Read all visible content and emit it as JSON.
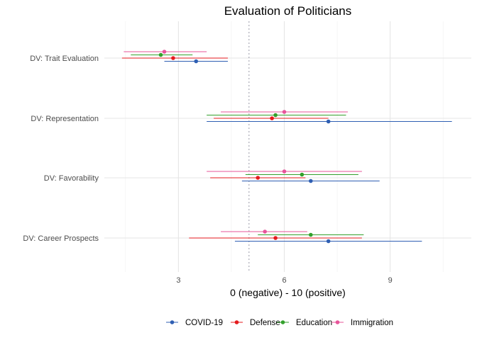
{
  "chart_data": {
    "type": "errorbar",
    "title": "Evaluation of Politicians",
    "xlabel": "0 (negative) - 10 (positive)",
    "ylabel": "",
    "xlim": [
      0.9,
      11.3
    ],
    "x_ticks": [
      3,
      6,
      9
    ],
    "reference_line": 5,
    "grid": true,
    "legend_position": "bottom",
    "categories": [
      "DV: Trait Evaluation",
      "DV: Representation",
      "DV: Favorability",
      "DV: Career Prospects"
    ],
    "series": [
      {
        "name": "COVID-19",
        "color": "#2f5fb3",
        "points": [
          {
            "category": "DV: Trait Evaluation",
            "estimate": 3.5,
            "low": 2.6,
            "high": 4.4
          },
          {
            "category": "DV: Representation",
            "estimate": 7.25,
            "low": 3.8,
            "high": 10.75
          },
          {
            "category": "DV: Favorability",
            "estimate": 6.75,
            "low": 4.8,
            "high": 8.7
          },
          {
            "category": "DV: Career Prospects",
            "estimate": 7.25,
            "low": 4.6,
            "high": 9.9
          }
        ]
      },
      {
        "name": "Defense",
        "color": "#e41a1c",
        "points": [
          {
            "category": "DV: Trait Evaluation",
            "estimate": 2.85,
            "low": 1.4,
            "high": 4.4
          },
          {
            "category": "DV: Representation",
            "estimate": 5.65,
            "low": 4.0,
            "high": 7.25
          },
          {
            "category": "DV: Favorability",
            "estimate": 5.25,
            "low": 3.9,
            "high": 6.6
          },
          {
            "category": "DV: Career Prospects",
            "estimate": 5.75,
            "low": 3.3,
            "high": 8.2
          }
        ]
      },
      {
        "name": "Education",
        "color": "#33a02c",
        "points": [
          {
            "category": "DV: Trait Evaluation",
            "estimate": 2.5,
            "low": 1.65,
            "high": 3.4
          },
          {
            "category": "DV: Representation",
            "estimate": 5.75,
            "low": 3.8,
            "high": 7.75
          },
          {
            "category": "DV: Favorability",
            "estimate": 6.5,
            "low": 4.9,
            "high": 8.1
          },
          {
            "category": "DV: Career Prospects",
            "estimate": 6.75,
            "low": 5.25,
            "high": 8.25
          }
        ]
      },
      {
        "name": "Immigration",
        "color": "#e7549a",
        "points": [
          {
            "category": "DV: Trait Evaluation",
            "estimate": 2.6,
            "low": 1.45,
            "high": 3.8
          },
          {
            "category": "DV: Representation",
            "estimate": 6.0,
            "low": 4.2,
            "high": 7.8
          },
          {
            "category": "DV: Favorability",
            "estimate": 6.0,
            "low": 3.8,
            "high": 8.2
          },
          {
            "category": "DV: Career Prospects",
            "estimate": 5.45,
            "low": 4.2,
            "high": 6.65
          }
        ]
      }
    ]
  }
}
